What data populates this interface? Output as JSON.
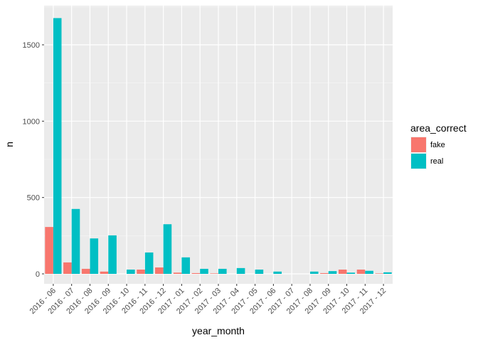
{
  "chart_data": {
    "type": "bar",
    "xlabel": "year_month",
    "ylabel": "n",
    "ylim": [
      0,
      1720
    ],
    "yticks": [
      0,
      500,
      1000,
      1500
    ],
    "grid": true,
    "legend": {
      "title": "area_correct",
      "placement": "right"
    },
    "categories": [
      "2016 - 06",
      "2016 - 07",
      "2016 - 08",
      "2016 - 09",
      "2016 - 10",
      "2016 - 11",
      "2016 - 12",
      "2017 - 01",
      "2017 - 02",
      "2017 - 03",
      "2017 - 04",
      "2017 - 05",
      "2017 - 06",
      "2017 - 07",
      "2017 - 08",
      "2017 - 09",
      "2017 - 10",
      "2017 - 11",
      "2017 - 12"
    ],
    "series": [
      {
        "name": "fake",
        "color": "#F8766D",
        "values": [
          307,
          75,
          33,
          15,
          0,
          28,
          42,
          8,
          5,
          3,
          0,
          0,
          0,
          0,
          0,
          5,
          28,
          28,
          3
        ]
      },
      {
        "name": "real",
        "color": "#00BFC4",
        "values": [
          1675,
          425,
          232,
          252,
          28,
          140,
          325,
          108,
          33,
          33,
          38,
          28,
          15,
          0,
          15,
          18,
          8,
          20,
          10
        ]
      }
    ]
  }
}
